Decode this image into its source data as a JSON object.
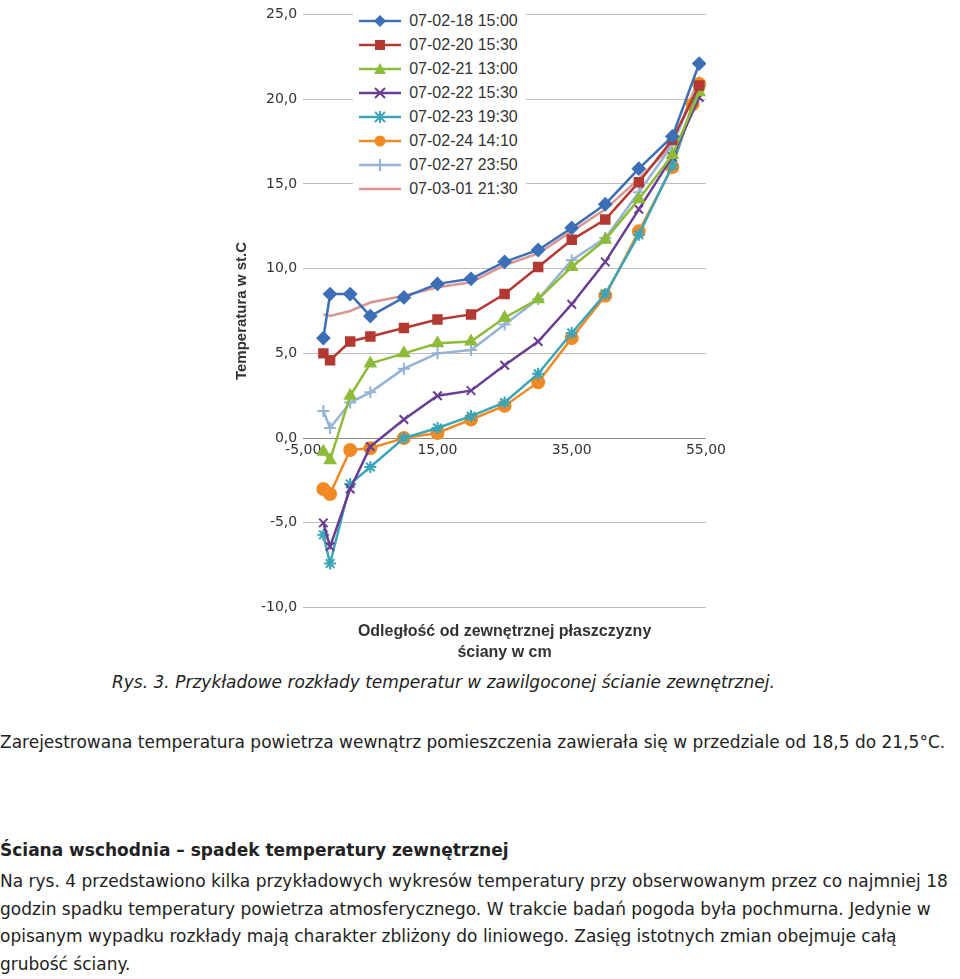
{
  "chart_data": {
    "type": "line",
    "y_label": "Temperatura w st.C",
    "x_label": [
      "Odległość od zewnętrznej płaszczyzny",
      "ściany w cm"
    ],
    "x": [
      -2,
      -1,
      2,
      5,
      10,
      15,
      20,
      25,
      30,
      35,
      40,
      45,
      50,
      53,
      54
    ],
    "xlim": [
      -5,
      55
    ],
    "xticks": [
      {
        "value": -5,
        "label": "-5,00"
      },
      {
        "value": 15,
        "label": "15,00"
      },
      {
        "value": 35,
        "label": "35,00"
      },
      {
        "value": 55,
        "label": "55,00"
      }
    ],
    "ylim": [
      -10,
      25
    ],
    "yticks": [
      {
        "value": -10,
        "label": "-10,0"
      },
      {
        "value": -5,
        "label": "-5,0"
      },
      {
        "value": 0,
        "label": "0,0"
      },
      {
        "value": 5,
        "label": "5,0"
      },
      {
        "value": 10,
        "label": "10,0"
      },
      {
        "value": 15,
        "label": "15,0"
      },
      {
        "value": 20,
        "label": "20,0"
      },
      {
        "value": 25,
        "label": "25,0"
      }
    ],
    "grid": "y",
    "legend": "upper left",
    "series": [
      {
        "name": "07-02-18 15:00",
        "color": "#3c6fb5",
        "marker": "diamond",
        "values": [
          5.9,
          8.5,
          8.5,
          7.2,
          8.3,
          9.1,
          9.4,
          10.4,
          11.1,
          12.4,
          13.8,
          15.9,
          17.8,
          null,
          22.1
        ]
      },
      {
        "name": "07-02-20 15:30",
        "color": "#b23a32",
        "marker": "square",
        "values": [
          5.0,
          4.6,
          5.7,
          6.0,
          6.5,
          7.0,
          7.3,
          8.5,
          10.1,
          11.7,
          12.9,
          15.1,
          17.6,
          null,
          20.8
        ]
      },
      {
        "name": "07-02-21 13:00",
        "color": "#8ebb3a",
        "marker": "triangle",
        "values": [
          -0.8,
          -1.3,
          2.5,
          4.4,
          5.0,
          5.6,
          5.7,
          7.1,
          8.2,
          10.1,
          11.7,
          14.1,
          16.7,
          null,
          20.4
        ]
      },
      {
        "name": "07-02-22 15:30",
        "color": "#6a3d91",
        "marker": "x",
        "values": [
          -5.0,
          -6.4,
          -3.0,
          -0.5,
          1.1,
          2.5,
          2.8,
          4.3,
          5.7,
          7.9,
          10.4,
          13.5,
          16.6,
          null,
          20.1
        ]
      },
      {
        "name": "07-02-23 19:30",
        "color": "#3aa5b8",
        "marker": "asterisk",
        "values": [
          -5.7,
          -7.4,
          -2.7,
          -1.7,
          0.0,
          0.6,
          1.3,
          2.1,
          3.8,
          6.2,
          8.5,
          12.0,
          16.1,
          null,
          20.7
        ]
      },
      {
        "name": "07-02-24 14:10",
        "color": "#f08a24",
        "marker": "circle",
        "values": [
          -3.0,
          -3.3,
          -0.7,
          -0.6,
          0.0,
          0.3,
          1.1,
          1.9,
          3.3,
          5.9,
          8.4,
          12.2,
          16.0,
          19.7,
          20.9
        ]
      },
      {
        "name": "07-02-27 23:50",
        "color": "#95b3d7",
        "marker": "plus",
        "values": [
          1.6,
          0.6,
          2.1,
          2.7,
          4.1,
          5.0,
          5.2,
          6.7,
          8.2,
          10.5,
          11.8,
          14.5,
          17.3,
          null,
          21.0
        ]
      },
      {
        "name": "07-03-01 21:30",
        "color": "#d99694",
        "marker": "none",
        "values": [
          7.3,
          7.2,
          7.5,
          8.0,
          8.4,
          8.9,
          9.2,
          10.2,
          10.9,
          12.2,
          13.5,
          15.3,
          17.3,
          null,
          21.3
        ]
      }
    ]
  },
  "document": {
    "caption": "Rys. 3. Przykładowe rozkłady temperatur w zawilgoconej ścianie zewnętrznej.",
    "paragraph1": "Zarejestrowana temperatura powietrza wewnątrz pomieszczenia zawierała się w przedziale od 18,5 do 21,5°C.",
    "heading": "Ściana wschodnia – spadek temperatury zewnętrznej",
    "paragraph2": "Na rys. 4 przedstawiono kilka przykładowych wykresów temperatury przy obserwowanym przez co najmniej 18 godzin spadku temperatury powietrza atmosferycznego. W trakcie badań pogoda była pochmurna. Jedynie w opisanym wypadku rozkłady mają charakter zbliżony do liniowego. Zasięg istotnych zmian obejmuje całą grubość ściany."
  }
}
